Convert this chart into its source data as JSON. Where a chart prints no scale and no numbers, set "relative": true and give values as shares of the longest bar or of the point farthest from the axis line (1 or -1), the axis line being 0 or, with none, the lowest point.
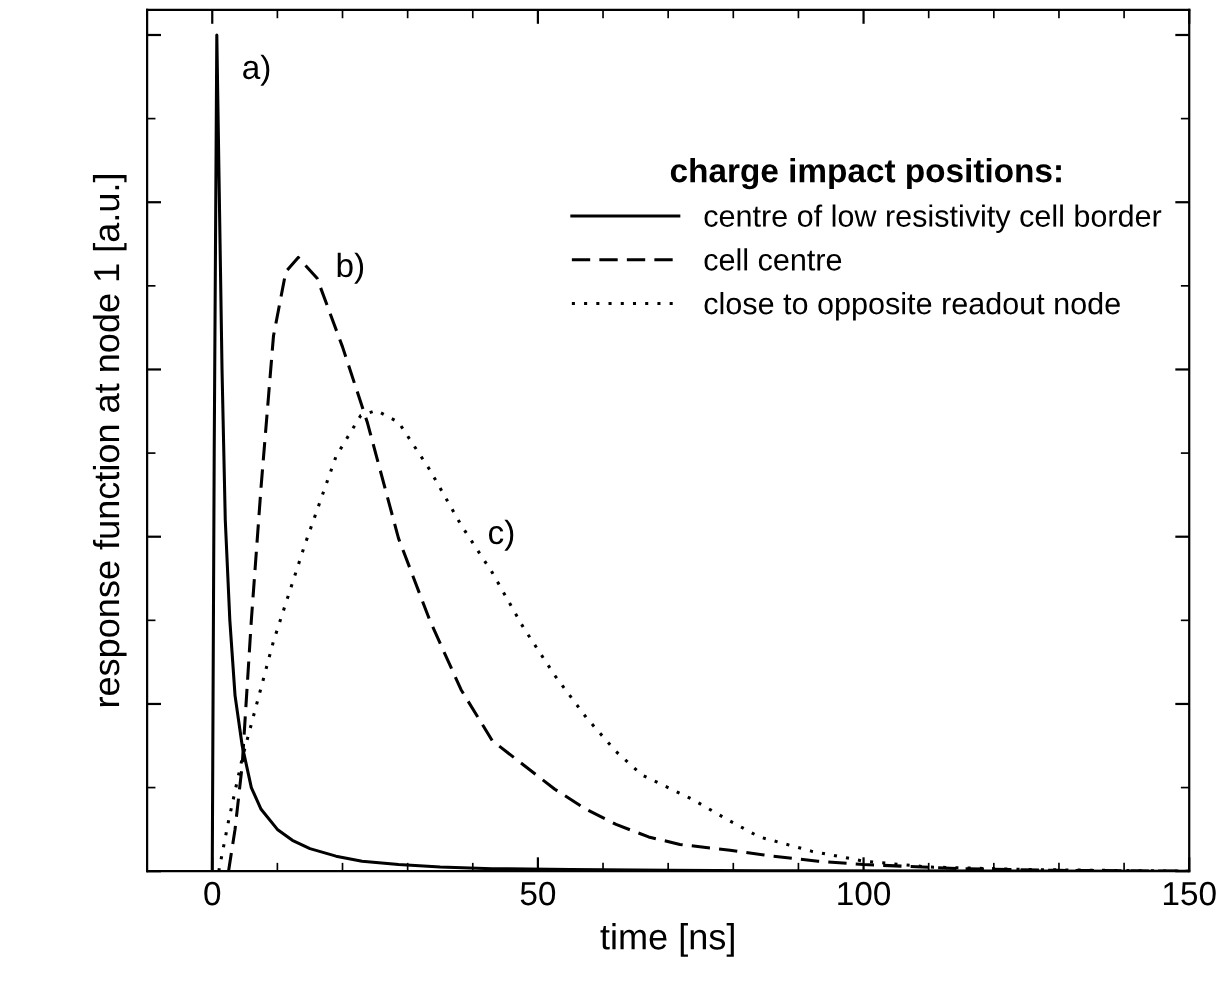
{
  "chart_data": {
    "type": "line",
    "relative": true,
    "xlabel": "time [ns]",
    "ylabel": "response function at node 1 [a.u.]",
    "legend_title": "charge impact positions:",
    "legend": "top right",
    "grid": false,
    "xlim": [
      -10,
      150
    ],
    "xticks": [
      0,
      50,
      100,
      150
    ],
    "tick_labels": "x",
    "series": [
      {
        "name": "centre of low resistivity cell border",
        "color": "#000000",
        "line_style": "solid",
        "x": [
          0,
          0.3,
          0.7,
          1.0,
          1.5,
          2,
          2.7,
          3.5,
          4.6,
          6,
          7.5,
          10,
          12.3,
          15,
          19,
          23,
          28.6,
          35,
          43,
          55,
          70,
          90,
          120,
          150
        ],
        "values": [
          0,
          0.5,
          1,
          0.85,
          0.6,
          0.42,
          0.3,
          0.21,
          0.15,
          0.1,
          0.074,
          0.05,
          0.037,
          0.027,
          0.018,
          0.012,
          0.008,
          0.005,
          0.003,
          0.002,
          0.001,
          0.0005,
          0.0002,
          0
        ]
      },
      {
        "name": "cell centre",
        "color": "#000000",
        "line_style": "dashed",
        "x": [
          2.5,
          3.5,
          4.6,
          6,
          7.5,
          9.4,
          11.3,
          13.2,
          16.1,
          20,
          23.8,
          28.6,
          33.4,
          38.2,
          43,
          47.8,
          52.6,
          57.4,
          62,
          67,
          71.8,
          79.5,
          86,
          93,
          100,
          115,
          130,
          150
        ],
        "values": [
          0,
          0.05,
          0.127,
          0.3,
          0.46,
          0.64,
          0.717,
          0.734,
          0.709,
          0.627,
          0.537,
          0.398,
          0.3,
          0.217,
          0.156,
          0.127,
          0.098,
          0.074,
          0.056,
          0.041,
          0.032,
          0.025,
          0.018,
          0.012,
          0.008,
          0.003,
          0.001,
          0
        ]
      },
      {
        "name": "close to opposite readout node",
        "color": "#000000",
        "line_style": "dotted",
        "x": [
          1,
          2.5,
          4.6,
          9.4,
          14.2,
          19,
          22.8,
          25.2,
          28.6,
          33.4,
          38.2,
          43,
          47.8,
          52.6,
          57.4,
          62,
          66,
          73.7,
          79.5,
          84,
          92,
          100,
          110,
          125,
          150
        ],
        "values": [
          0,
          0.06,
          0.135,
          0.275,
          0.39,
          0.496,
          0.545,
          0.551,
          0.537,
          0.48,
          0.414,
          0.357,
          0.291,
          0.234,
          0.184,
          0.143,
          0.115,
          0.086,
          0.06,
          0.041,
          0.024,
          0.012,
          0.005,
          0.002,
          0
        ]
      }
    ],
    "annotations": [
      "a)",
      "b)",
      "c)"
    ]
  }
}
